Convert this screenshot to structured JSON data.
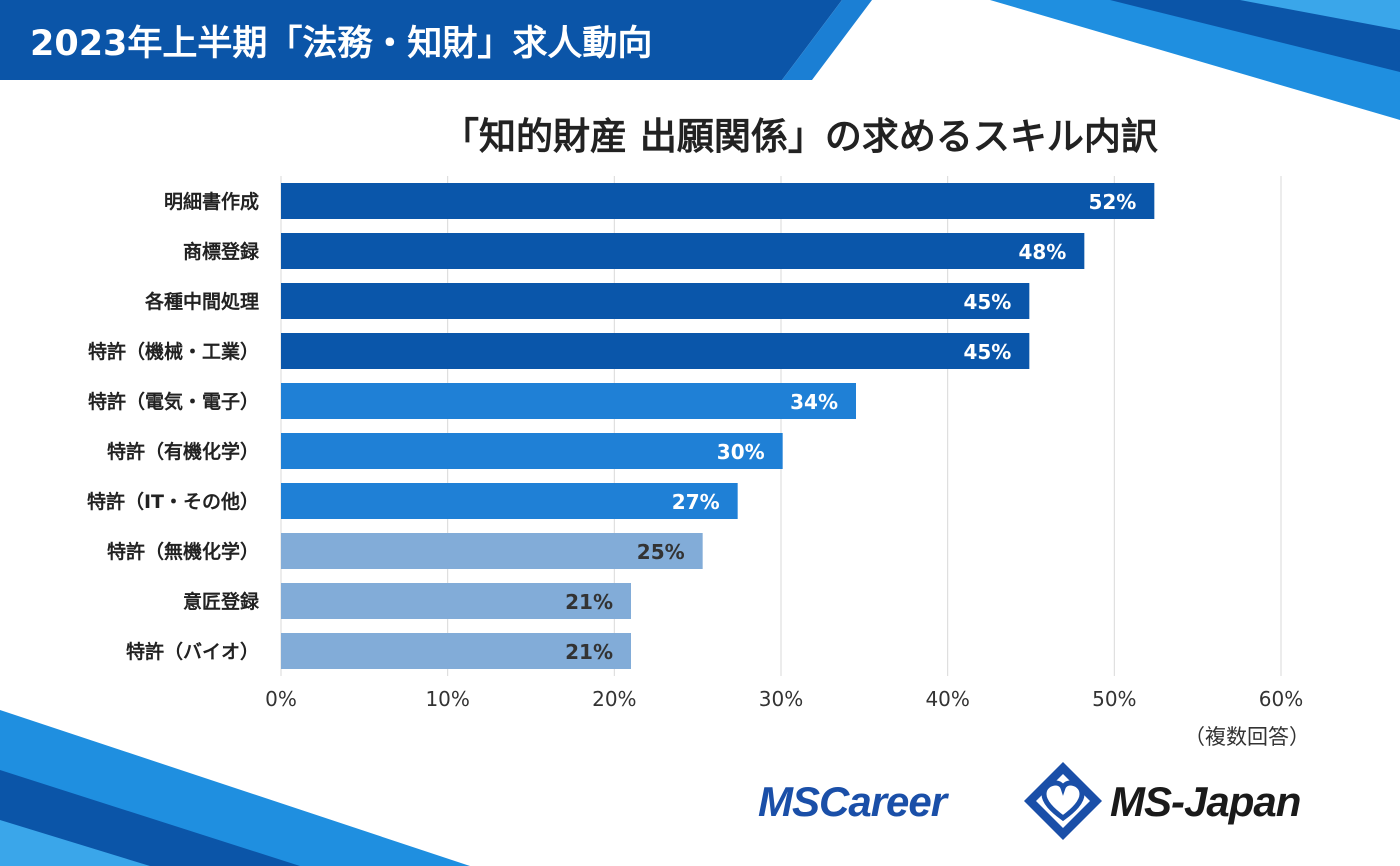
{
  "header": {
    "banner_title": "2023年上半期「法務・知財」求人動向"
  },
  "chart_data": {
    "type": "bar",
    "orientation": "horizontal",
    "title": "「知的財産 出願関係」の求めるスキル内訳",
    "xlabel": "",
    "ylabel": "",
    "xlim": [
      0,
      60
    ],
    "xticks": [
      "0%",
      "10%",
      "20%",
      "30%",
      "40%",
      "50%",
      "60%"
    ],
    "grid": "vertical",
    "categories": [
      "明細書作成",
      "商標登録",
      "各種中間処理",
      "特許（機械・工業）",
      "特許（電気・電子）",
      "特許（有機化学）",
      "特許（IT・その他）",
      "特許（無機化学）",
      "意匠登録",
      "特許（バイオ）"
    ],
    "values": [
      52.4,
      48.2,
      44.9,
      44.9,
      34.5,
      30.1,
      27.4,
      25.3,
      21.0,
      21.0
    ],
    "data_labels": [
      "52%",
      "48%",
      "45%",
      "45%",
      "34%",
      "30%",
      "27%",
      "25%",
      "21%",
      "21%"
    ],
    "bar_colors": [
      "#0a56aa",
      "#0a56aa",
      "#0a56aa",
      "#0a56aa",
      "#1f80d6",
      "#1f80d6",
      "#1f80d6",
      "#82acd8",
      "#82acd8",
      "#82acd8"
    ],
    "label_colors": [
      "#ffffff",
      "#ffffff",
      "#ffffff",
      "#ffffff",
      "#ffffff",
      "#ffffff",
      "#ffffff",
      "#333333",
      "#333333",
      "#333333"
    ],
    "note": "（複数回答）"
  },
  "logos": {
    "mscareer": "MSCareer",
    "msjapan": "MS-Japan"
  },
  "colors": {
    "banner": "#0b55a8",
    "accent_light": "#1f8fe0",
    "gridline": "#d9d9d9"
  }
}
